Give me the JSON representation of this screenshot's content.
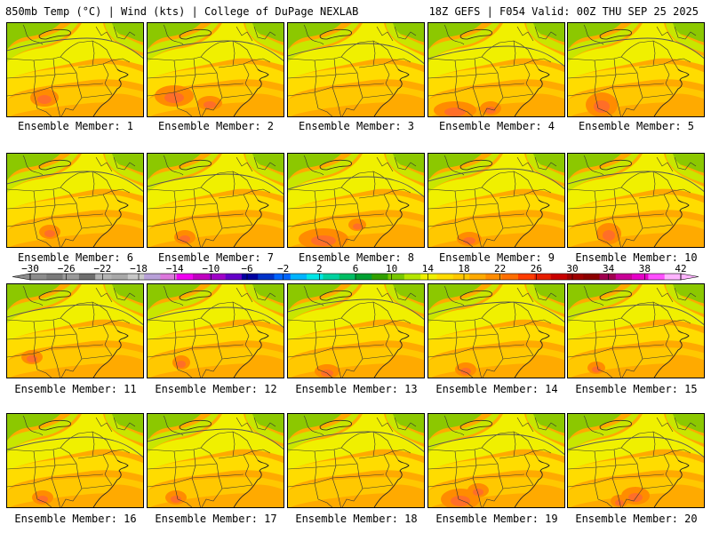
{
  "header": {
    "left": "850mb Temp (°C) | Wind (kts) | College of DuPage NEXLAB",
    "right": "18Z GEFS | F054 Valid: 00Z THU SEP 25 2025"
  },
  "panels": [
    {
      "label": "Ensemble Member: 1"
    },
    {
      "label": "Ensemble Member: 2"
    },
    {
      "label": "Ensemble Member: 3"
    },
    {
      "label": "Ensemble Member: 4"
    },
    {
      "label": "Ensemble Member: 5"
    },
    {
      "label": "Ensemble Member: 6"
    },
    {
      "label": "Ensemble Member: 7"
    },
    {
      "label": "Ensemble Member: 8"
    },
    {
      "label": "Ensemble Member: 9"
    },
    {
      "label": "Ensemble Member: 10"
    },
    {
      "label": "Ensemble Member: 11"
    },
    {
      "label": "Ensemble Member: 12"
    },
    {
      "label": "Ensemble Member: 13"
    },
    {
      "label": "Ensemble Member: 14"
    },
    {
      "label": "Ensemble Member: 15"
    },
    {
      "label": "Ensemble Member: 16"
    },
    {
      "label": "Ensemble Member: 17"
    },
    {
      "label": "Ensemble Member: 18"
    },
    {
      "label": "Ensemble Member: 19"
    },
    {
      "label": "Ensemble Member: 20"
    }
  ],
  "colorbar": {
    "ticks": [
      "−30",
      "−26",
      "−22",
      "−18",
      "−14",
      "−10",
      "−6",
      "−2",
      "2",
      "6",
      "10",
      "14",
      "18",
      "22",
      "26",
      "30",
      "34",
      "38",
      "42"
    ],
    "colors": [
      "#8c8c8c",
      "#7a7a7a",
      "#9a9a9a",
      "#6e6e6e",
      "#b4b4b4",
      "#a8a8a8",
      "#c8c8c8",
      "#b8a0d8",
      "#dc78dc",
      "#f000f0",
      "#c000c0",
      "#a000c8",
      "#6400c8",
      "#0000a0",
      "#0032c8",
      "#0064ff",
      "#00b4ff",
      "#00e6e6",
      "#00d2a0",
      "#00be64",
      "#00a032",
      "#32a000",
      "#78c800",
      "#b4e600",
      "#f0f000",
      "#ffdc00",
      "#ffc800",
      "#ffaa00",
      "#ff8c00",
      "#ff6e00",
      "#ff3c00",
      "#e61e00",
      "#c80000",
      "#a00000",
      "#8c0000",
      "#a00050",
      "#c80096",
      "#e600c8",
      "#ff50ff",
      "#ffb4ff"
    ]
  },
  "field_colors": {
    "green": "#8cc800",
    "lime": "#c8e600",
    "yellow": "#f0f000",
    "gold": "#ffdc00",
    "amber": "#ffc800",
    "orange": "#ffaa00",
    "deep-orange": "#ff8c00",
    "hot": "#ff6e28"
  }
}
